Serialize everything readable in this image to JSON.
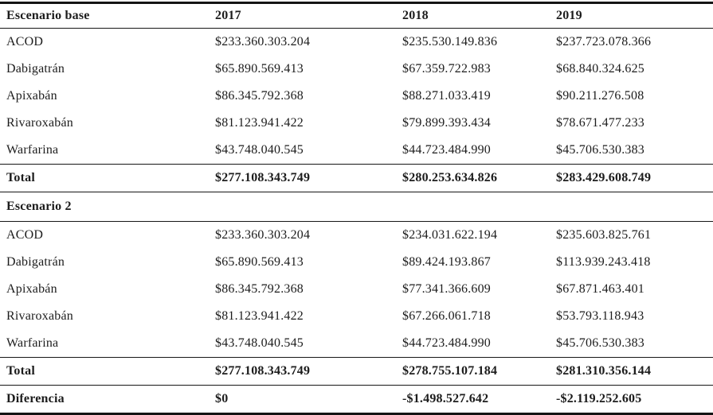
{
  "table": {
    "header": {
      "label": "Escenario base",
      "years": [
        "2017",
        "2018",
        "2019"
      ]
    },
    "scenario_base": {
      "rows": [
        {
          "label": "ACOD",
          "values": [
            "$233.360.303.204",
            "$235.530.149.836",
            "$237.723.078.366"
          ]
        },
        {
          "label": "Dabigatrán",
          "values": [
            "$65.890.569.413",
            "$67.359.722.983",
            "$68.840.324.625"
          ]
        },
        {
          "label": "Apixabán",
          "values": [
            "$86.345.792.368",
            "$88.271.033.419",
            "$90.211.276.508"
          ]
        },
        {
          "label": "Rivaroxabán",
          "values": [
            "$81.123.941.422",
            "$79.899.393.434",
            "$78.671.477.233"
          ]
        },
        {
          "label": "Warfarina",
          "values": [
            "$43.748.040.545",
            "$44.723.484.990",
            "$45.706.530.383"
          ]
        }
      ],
      "total": {
        "label": "Total",
        "values": [
          "$277.108.343.749",
          "$280.253.634.826",
          "$283.429.608.749"
        ]
      }
    },
    "scenario_2": {
      "label": "Escenario 2",
      "rows": [
        {
          "label": "ACOD",
          "values": [
            "$233.360.303.204",
            "$234.031.622.194",
            "$235.603.825.761"
          ]
        },
        {
          "label": "Dabigatrán",
          "values": [
            "$65.890.569.413",
            "$89.424.193.867",
            "$113.939.243.418"
          ]
        },
        {
          "label": "Apixabán",
          "values": [
            "$86.345.792.368",
            "$77.341.366.609",
            "$67.871.463.401"
          ]
        },
        {
          "label": "Rivaroxabán",
          "values": [
            "$81.123.941.422",
            "$67.266.061.718",
            "$53.793.118.943"
          ]
        },
        {
          "label": "Warfarina",
          "values": [
            "$43.748.040.545",
            "$44.723.484.990",
            "$45.706.530.383"
          ]
        }
      ],
      "total": {
        "label": "Total",
        "values": [
          "$277.108.343.749",
          "$278.755.107.184",
          "$281.310.356.144"
        ]
      }
    },
    "diferencia": {
      "label": "Diferencia",
      "values": [
        "$0",
        "-$1.498.527.642",
        "-$2.119.252.605"
      ]
    }
  }
}
